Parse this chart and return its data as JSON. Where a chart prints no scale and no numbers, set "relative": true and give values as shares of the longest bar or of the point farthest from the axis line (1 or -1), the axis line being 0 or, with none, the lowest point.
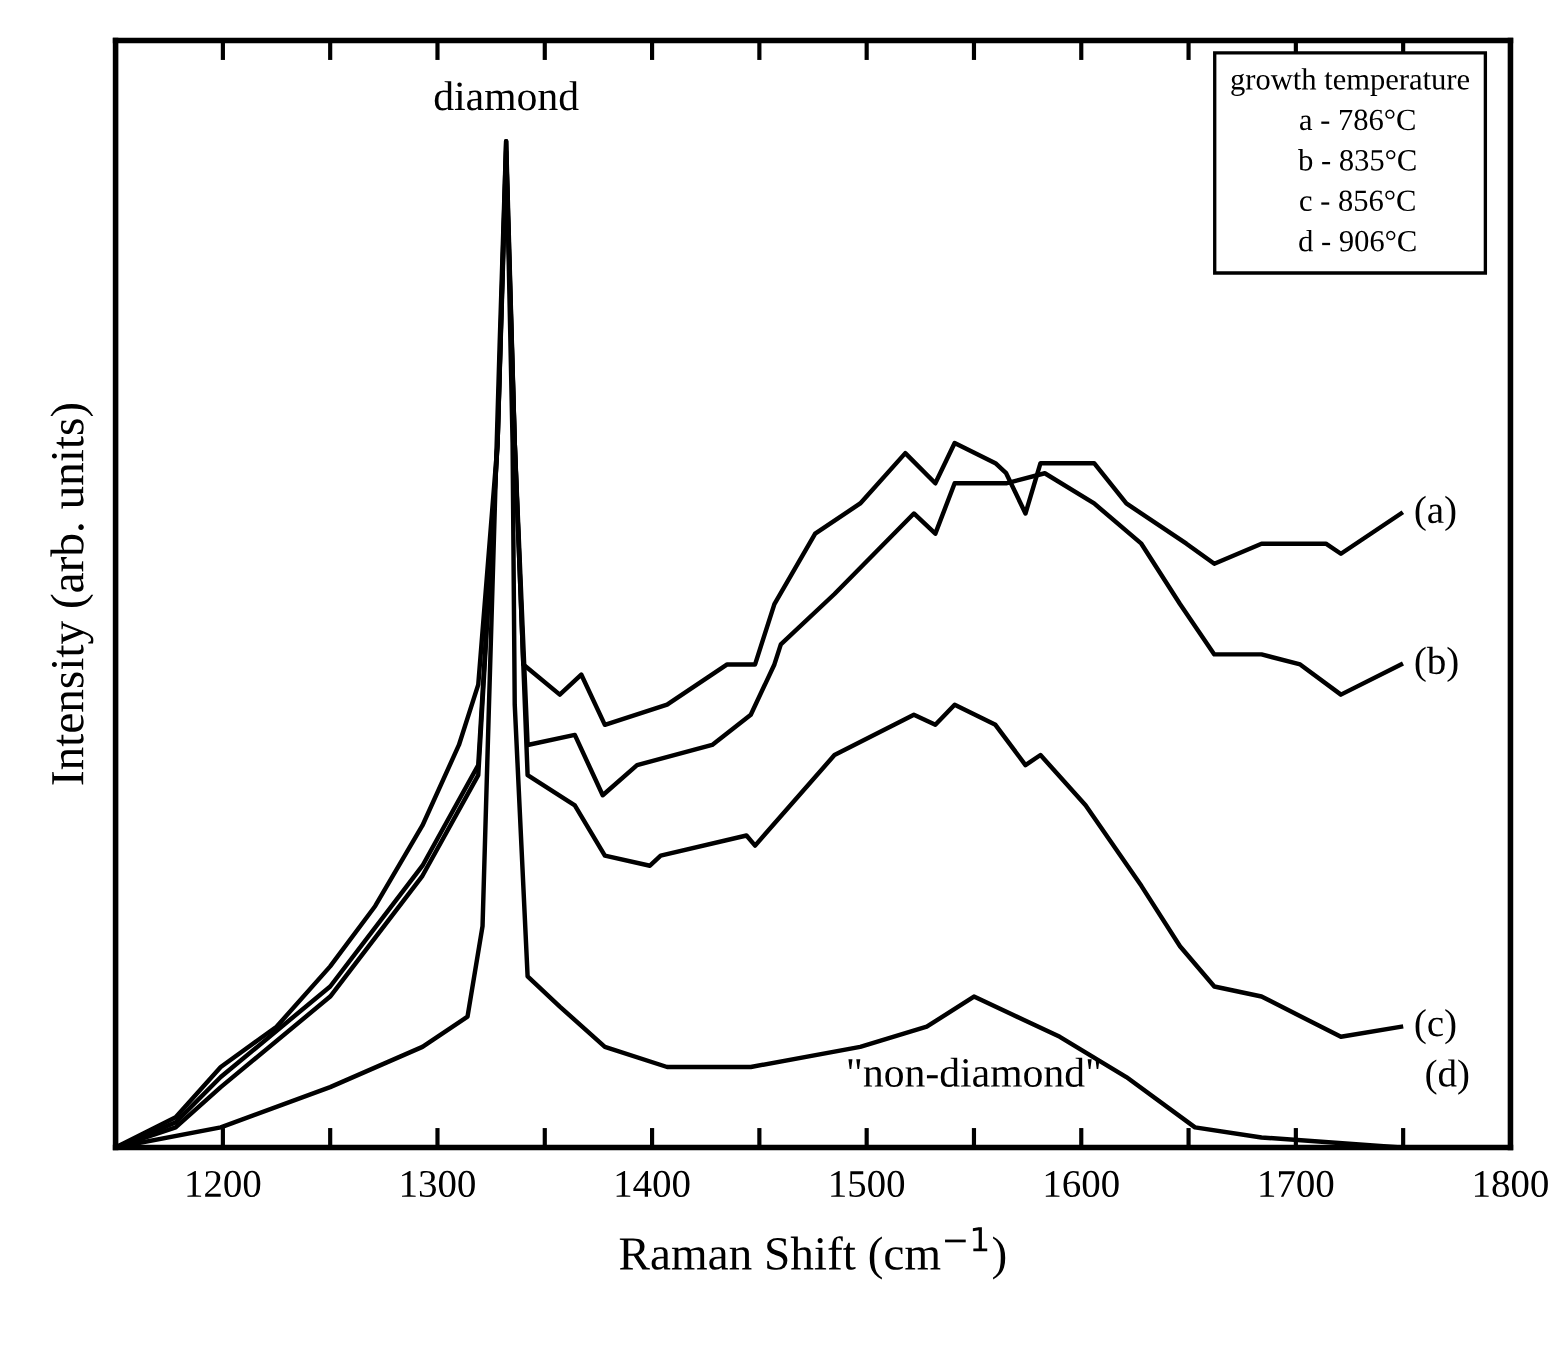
{
  "chart_data": {
    "type": "line",
    "relative": true,
    "xlabel": "Raman Shift (cm$^{−1}$)",
    "ylabel": "Intensity (arb. units)",
    "xlim": [
      1150,
      1800
    ],
    "xticks": [
      {
        "value": 1150,
        "label": null
      },
      1200,
      {
        "value": 1250,
        "label": null
      },
      1300,
      {
        "value": 1350,
        "label": null
      },
      1400,
      {
        "value": 1450,
        "label": null
      },
      1500,
      {
        "value": 1550,
        "label": null
      },
      1600,
      {
        "value": 1650,
        "label": null
      },
      1700,
      {
        "value": 1750,
        "label": null
      },
      1800
    ],
    "grid": false,
    "marker": "none",
    "line_style": "solid",
    "annotations": [
      {
        "text": "diamond",
        "x": 1332,
        "y": 1.0
      },
      {
        "text": "\"non-diamond\"",
        "x": 1550,
        "y": 0.15
      },
      "growth temperature",
      "a - 786°C",
      "b - 835°C",
      "c - 856°C",
      "d - 906°C"
    ],
    "series": [
      {
        "name": "(a)",
        "color": "#000000",
        "x": [
          1150,
          1178,
          1199,
          1225,
          1250,
          1271,
          1293,
          1310,
          1319,
          1328,
          1332,
          1336,
          1340,
          1357,
          1367,
          1378,
          1407,
          1435,
          1448,
          1457,
          1476,
          1497,
          1518,
          1532,
          1541,
          1560,
          1565,
          1574,
          1581,
          1606,
          1621,
          1649,
          1662,
          1684,
          1714,
          1721,
          1749
        ],
        "values": [
          0.0,
          0.03,
          0.08,
          0.12,
          0.18,
          0.24,
          0.32,
          0.4,
          0.46,
          0.7,
          1.0,
          0.7,
          0.48,
          0.45,
          0.47,
          0.42,
          0.44,
          0.48,
          0.48,
          0.54,
          0.61,
          0.64,
          0.69,
          0.66,
          0.7,
          0.68,
          0.67,
          0.63,
          0.68,
          0.68,
          0.64,
          0.6,
          0.58,
          0.6,
          0.6,
          0.59,
          0.63
        ]
      },
      {
        "name": "(b)",
        "color": "#000000",
        "x": [
          1150,
          1178,
          1199,
          1250,
          1293,
          1319,
          1328,
          1332,
          1336,
          1342,
          1364,
          1377,
          1393,
          1428,
          1446,
          1457,
          1460,
          1485,
          1522,
          1532,
          1541,
          1565,
          1583,
          1606,
          1628,
          1646,
          1662,
          1684,
          1702,
          1721,
          1749
        ],
        "values": [
          0.0,
          0.025,
          0.07,
          0.16,
          0.28,
          0.38,
          0.7,
          0.99,
          0.7,
          0.4,
          0.41,
          0.35,
          0.38,
          0.4,
          0.43,
          0.48,
          0.5,
          0.55,
          0.63,
          0.61,
          0.66,
          0.66,
          0.67,
          0.64,
          0.6,
          0.54,
          0.49,
          0.49,
          0.48,
          0.45,
          0.48
        ]
      },
      {
        "name": "(c)",
        "color": "#000000",
        "x": [
          1150,
          1178,
          1199,
          1250,
          1293,
          1319,
          1328,
          1332,
          1336,
          1342,
          1364,
          1378,
          1399,
          1404,
          1444,
          1448,
          1485,
          1522,
          1532,
          1541,
          1560,
          1574,
          1581,
          1602,
          1628,
          1646,
          1662,
          1684,
          1721,
          1749
        ],
        "values": [
          0.0,
          0.02,
          0.06,
          0.15,
          0.27,
          0.37,
          0.7,
          0.98,
          0.7,
          0.37,
          0.34,
          0.29,
          0.28,
          0.29,
          0.31,
          0.3,
          0.39,
          0.43,
          0.42,
          0.44,
          0.42,
          0.38,
          0.39,
          0.34,
          0.26,
          0.2,
          0.16,
          0.15,
          0.11,
          0.12
        ]
      },
      {
        "name": "(d)",
        "color": "#000000",
        "x": [
          1150,
          1199,
          1250,
          1293,
          1314,
          1321,
          1324,
          1329,
          1332,
          1335,
          1336,
          1342,
          1357,
          1378,
          1407,
          1446,
          1497,
          1528,
          1550,
          1590,
          1621,
          1653,
          1684,
          1749,
          1800
        ],
        "values": [
          0.0,
          0.02,
          0.06,
          0.1,
          0.13,
          0.22,
          0.44,
          0.8,
          1.0,
          0.7,
          0.44,
          0.17,
          0.14,
          0.1,
          0.08,
          0.08,
          0.1,
          0.12,
          0.15,
          0.11,
          0.07,
          0.02,
          0.01,
          0.0,
          0.0
        ]
      }
    ]
  }
}
